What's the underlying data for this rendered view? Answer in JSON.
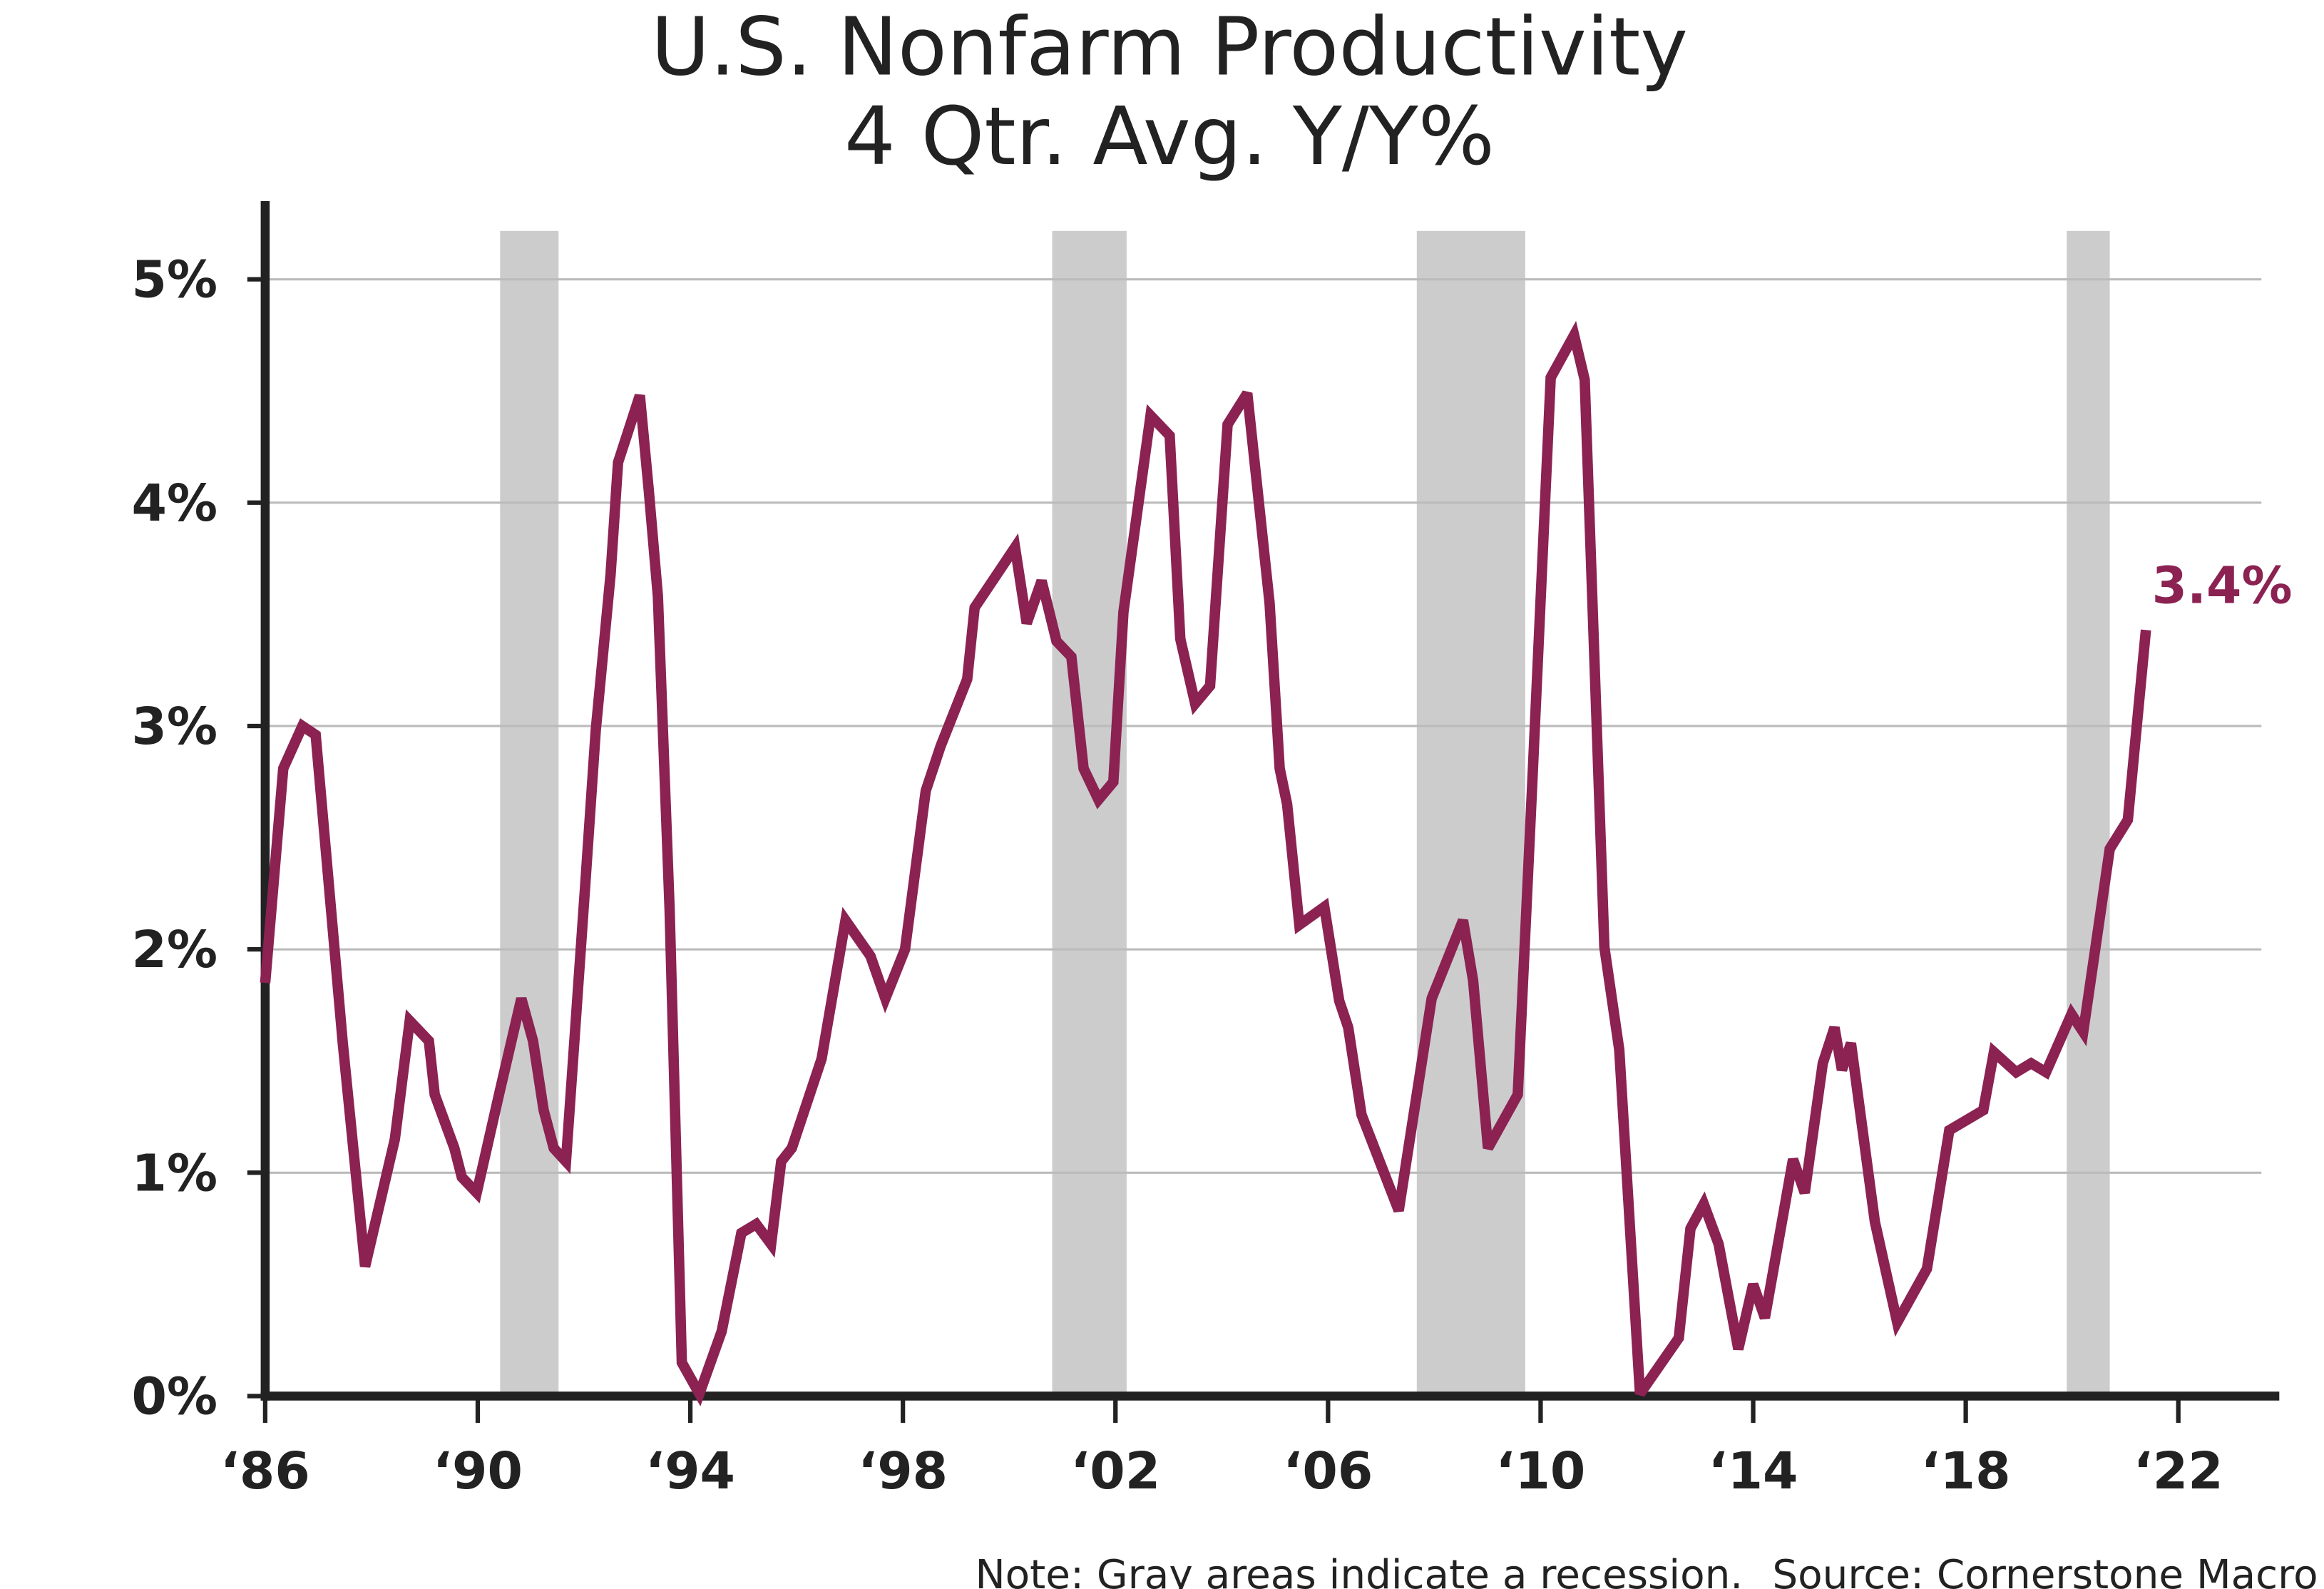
{
  "chart_data": {
    "type": "line",
    "title": "U.S. Nonfarm Productivity",
    "subtitle": "4 Qtr. Avg. Y/Y%",
    "note": "Note: Gray areas indicate a recession.",
    "source": "Source: Cornerstone Macro",
    "end_label": "3.4%",
    "color": "#8b2252",
    "recession_color": "#cccccc",
    "recessions": [
      [
        1990.42,
        1991.52
      ],
      [
        2000.81,
        2002.21
      ],
      [
        2007.67,
        2009.71
      ],
      [
        2019.9,
        2020.71
      ]
    ],
    "grid": true,
    "xlim": [
      1986,
      2023.9
    ],
    "xticks": [
      {
        "value": 1986,
        "label": "‘86"
      },
      {
        "value": 1990,
        "label": "‘90"
      },
      {
        "value": 1994,
        "label": "‘94"
      },
      {
        "value": 1998,
        "label": "‘98"
      },
      {
        "value": 2002,
        "label": "‘02"
      },
      {
        "value": 2006,
        "label": "‘06"
      },
      {
        "value": 2010,
        "label": "‘10"
      },
      {
        "value": 2014,
        "label": "‘14"
      },
      {
        "value": 2018,
        "label": "‘18"
      },
      {
        "value": 2022,
        "label": "‘22"
      }
    ],
    "ylim": [
      0,
      5.35
    ],
    "yticks": [
      {
        "value": 0,
        "label": "0%"
      },
      {
        "value": 1,
        "label": "1%"
      },
      {
        "value": 2,
        "label": "2%"
      },
      {
        "value": 3,
        "label": "3%"
      },
      {
        "value": 4,
        "label": "4%"
      },
      {
        "value": 5,
        "label": "5%"
      }
    ],
    "x": [
      1986.0,
      1986.34,
      1986.7,
      1986.95,
      1987.46,
      1987.88,
      1988.44,
      1988.72,
      1989.08,
      1989.19,
      1989.56,
      1989.7,
      1989.98,
      1990.4,
      1990.82,
      1991.04,
      1991.24,
      1991.43,
      1991.66,
      1992.02,
      1992.22,
      1992.5,
      1992.64,
      1993.05,
      1993.22,
      1993.39,
      1993.61,
      1993.84,
      1994.17,
      1994.59,
      1994.96,
      1995.24,
      1995.52,
      1995.71,
      1995.91,
      1996.47,
      1996.92,
      1997.39,
      1997.67,
      1998.04,
      1998.43,
      1998.71,
      1999.21,
      1999.35,
      2000.11,
      2000.33,
      2000.61,
      2000.89,
      2001.17,
      2001.4,
      2001.68,
      2001.96,
      2002.15,
      2002.66,
      2003.02,
      2003.22,
      2003.5,
      2003.78,
      2004.11,
      2004.48,
      2004.9,
      2005.09,
      2005.23,
      2005.46,
      2005.93,
      2006.21,
      2006.38,
      2006.63,
      2007.33,
      2007.95,
      2008.54,
      2008.73,
      2009.01,
      2009.57,
      2009.85,
      2010.19,
      2010.63,
      2010.83,
      2011.2,
      2011.48,
      2011.87,
      2012.6,
      2012.82,
      2013.07,
      2013.35,
      2013.72,
      2014.0,
      2014.22,
      2014.75,
      2014.97,
      2015.31,
      2015.53,
      2015.67,
      2015.84,
      2016.29,
      2016.71,
      2017.27,
      2017.69,
      2018.33,
      2018.53,
      2018.95,
      2019.23,
      2019.51,
      2019.99,
      2020.21,
      2020.71,
      2021.05,
      2021.39
    ],
    "values": [
      1.85,
      2.81,
      3.0,
      2.96,
      1.58,
      0.58,
      1.15,
      1.68,
      1.59,
      1.35,
      1.11,
      0.98,
      0.91,
      1.35,
      1.78,
      1.59,
      1.28,
      1.11,
      1.05,
      2.28,
      2.98,
      3.68,
      4.18,
      4.48,
      4.05,
      3.58,
      2.18,
      0.15,
      0.01,
      0.29,
      0.73,
      0.77,
      0.68,
      1.05,
      1.11,
      1.51,
      2.13,
      1.97,
      1.78,
      2.0,
      2.71,
      2.91,
      3.21,
      3.53,
      3.8,
      3.46,
      3.65,
      3.38,
      3.31,
      2.81,
      2.67,
      2.75,
      3.51,
      4.39,
      4.3,
      3.39,
      3.1,
      3.18,
      4.35,
      4.49,
      3.55,
      2.81,
      2.65,
      2.11,
      2.19,
      1.77,
      1.65,
      1.26,
      0.83,
      1.78,
      2.13,
      1.86,
      1.11,
      1.35,
      2.78,
      4.56,
      4.75,
      4.55,
      2.01,
      1.55,
      0.01,
      0.26,
      0.75,
      0.86,
      0.68,
      0.21,
      0.5,
      0.35,
      1.06,
      0.91,
      1.49,
      1.65,
      1.46,
      1.58,
      0.78,
      0.33,
      0.57,
      1.19,
      1.28,
      1.54,
      1.45,
      1.49,
      1.45,
      1.71,
      1.63,
      2.45,
      2.58,
      3.43
    ]
  }
}
